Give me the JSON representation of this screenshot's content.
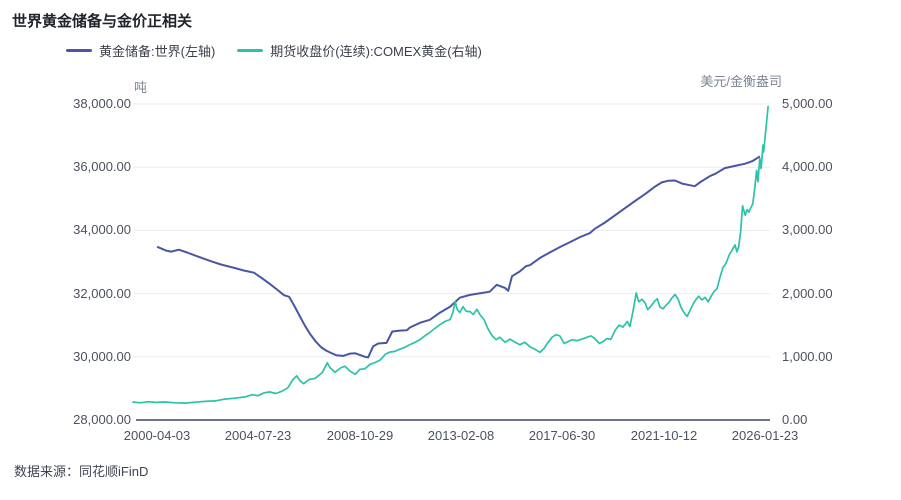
{
  "title": "世界黄金储备与金价正相关",
  "legend": {
    "items": [
      {
        "label": "黄金储备:世界(左轴)",
        "color": "#4956a3"
      },
      {
        "label": "期货收盘价(连续):COMEX黄金(右轴)",
        "color": "#2cc2a9"
      }
    ]
  },
  "left_axis": {
    "unit": "吨",
    "ticks": [
      "38,000.00",
      "36,000.00",
      "34,000.00",
      "32,000.00",
      "30,000.00",
      "28,000.00"
    ]
  },
  "right_axis": {
    "unit": "美元/金衡盎司",
    "ticks": [
      "5,000.00",
      "4,000.00",
      "3,000.00",
      "2,000.00",
      "1,000.00",
      "0.00"
    ]
  },
  "x_axis": {
    "ticks": [
      "2000-04-03",
      "2004-07-23",
      "2008-10-29",
      "2013-02-08",
      "2017-06-30",
      "2021-10-12",
      "2026-01-23"
    ]
  },
  "source": "数据来源：同花顺iFinD",
  "colors": {
    "reserves_line": "#4956a3",
    "gold_price_line": "#2cc2a9",
    "gridline": "#e9ebf5",
    "axis_line": "#3b4263"
  },
  "chart_data": {
    "type": "line",
    "title": "世界黄金储备与金价正相关",
    "x_tick_labels": [
      "2000-04-03",
      "2004-07-23",
      "2008-10-29",
      "2013-02-08",
      "2017-06-30",
      "2021-10-12",
      "2026-01-23"
    ],
    "x_note": "points use t = fraction of x-axis width (0 = left edge ~1999, 1 = right edge 2026-01-23)",
    "left_range": [
      28000,
      38000
    ],
    "right_range": [
      0,
      5000
    ],
    "grid": true,
    "legend_position": "top",
    "series": [
      {
        "name": "黄金储备:世界(左轴)",
        "axis": "left",
        "unit": "吨",
        "color": "#4956a3",
        "points": [
          [
            0.039,
            33470
          ],
          [
            0.052,
            33360
          ],
          [
            0.06,
            33330
          ],
          [
            0.072,
            33390
          ],
          [
            0.085,
            33300
          ],
          [
            0.102,
            33170
          ],
          [
            0.12,
            33040
          ],
          [
            0.138,
            32920
          ],
          [
            0.156,
            32830
          ],
          [
            0.174,
            32730
          ],
          [
            0.19,
            32660
          ],
          [
            0.203,
            32480
          ],
          [
            0.215,
            32300
          ],
          [
            0.226,
            32130
          ],
          [
            0.237,
            31950
          ],
          [
            0.245,
            31900
          ],
          [
            0.253,
            31620
          ],
          [
            0.262,
            31280
          ],
          [
            0.27,
            30980
          ],
          [
            0.278,
            30720
          ],
          [
            0.287,
            30480
          ],
          [
            0.295,
            30310
          ],
          [
            0.303,
            30200
          ],
          [
            0.311,
            30120
          ],
          [
            0.319,
            30050
          ],
          [
            0.33,
            30030
          ],
          [
            0.341,
            30100
          ],
          [
            0.349,
            30110
          ],
          [
            0.356,
            30060
          ],
          [
            0.364,
            30000
          ],
          [
            0.369,
            29980
          ],
          [
            0.377,
            30330
          ],
          [
            0.385,
            30420
          ],
          [
            0.398,
            30440
          ],
          [
            0.407,
            30800
          ],
          [
            0.419,
            30830
          ],
          [
            0.43,
            30840
          ],
          [
            0.435,
            30930
          ],
          [
            0.451,
            31080
          ],
          [
            0.466,
            31170
          ],
          [
            0.482,
            31400
          ],
          [
            0.498,
            31590
          ],
          [
            0.513,
            31870
          ],
          [
            0.529,
            31960
          ],
          [
            0.545,
            32010
          ],
          [
            0.56,
            32060
          ],
          [
            0.571,
            32280
          ],
          [
            0.584,
            32180
          ],
          [
            0.589,
            32090
          ],
          [
            0.595,
            32550
          ],
          [
            0.607,
            32700
          ],
          [
            0.617,
            32870
          ],
          [
            0.623,
            32900
          ],
          [
            0.639,
            33130
          ],
          [
            0.655,
            33310
          ],
          [
            0.67,
            33470
          ],
          [
            0.686,
            33630
          ],
          [
            0.702,
            33790
          ],
          [
            0.717,
            33910
          ],
          [
            0.725,
            34050
          ],
          [
            0.741,
            34250
          ],
          [
            0.757,
            34480
          ],
          [
            0.772,
            34700
          ],
          [
            0.788,
            34930
          ],
          [
            0.804,
            35150
          ],
          [
            0.819,
            35380
          ],
          [
            0.83,
            35520
          ],
          [
            0.84,
            35570
          ],
          [
            0.851,
            35580
          ],
          [
            0.862,
            35480
          ],
          [
            0.874,
            35430
          ],
          [
            0.882,
            35400
          ],
          [
            0.89,
            35520
          ],
          [
            0.898,
            35620
          ],
          [
            0.906,
            35720
          ],
          [
            0.914,
            35790
          ],
          [
            0.929,
            35970
          ],
          [
            0.945,
            36040
          ],
          [
            0.961,
            36110
          ],
          [
            0.973,
            36200
          ],
          [
            0.983,
            36330
          ]
        ]
      },
      {
        "name": "期货收盘价(连续):COMEX黄金(右轴)",
        "axis": "right",
        "unit": "美元/金衡盎司",
        "color": "#2cc2a9",
        "points": [
          [
            0.0,
            285
          ],
          [
            0.011,
            272
          ],
          [
            0.024,
            290
          ],
          [
            0.036,
            278
          ],
          [
            0.05,
            285
          ],
          [
            0.066,
            272
          ],
          [
            0.082,
            268
          ],
          [
            0.097,
            282
          ],
          [
            0.113,
            295
          ],
          [
            0.129,
            303
          ],
          [
            0.144,
            330
          ],
          [
            0.16,
            345
          ],
          [
            0.176,
            365
          ],
          [
            0.187,
            400
          ],
          [
            0.196,
            385
          ],
          [
            0.206,
            430
          ],
          [
            0.215,
            445
          ],
          [
            0.224,
            420
          ],
          [
            0.234,
            455
          ],
          [
            0.243,
            510
          ],
          [
            0.251,
            640
          ],
          [
            0.257,
            700
          ],
          [
            0.262,
            620
          ],
          [
            0.268,
            575
          ],
          [
            0.276,
            640
          ],
          [
            0.286,
            660
          ],
          [
            0.297,
            750
          ],
          [
            0.305,
            905
          ],
          [
            0.309,
            833
          ],
          [
            0.317,
            754
          ],
          [
            0.327,
            830
          ],
          [
            0.333,
            850
          ],
          [
            0.341,
            770
          ],
          [
            0.349,
            723
          ],
          [
            0.356,
            800
          ],
          [
            0.364,
            810
          ],
          [
            0.372,
            880
          ],
          [
            0.38,
            910
          ],
          [
            0.388,
            950
          ],
          [
            0.396,
            1040
          ],
          [
            0.403,
            1075
          ],
          [
            0.411,
            1085
          ],
          [
            0.419,
            1120
          ],
          [
            0.427,
            1150
          ],
          [
            0.435,
            1195
          ],
          [
            0.443,
            1230
          ],
          [
            0.451,
            1275
          ],
          [
            0.458,
            1330
          ],
          [
            0.466,
            1385
          ],
          [
            0.474,
            1450
          ],
          [
            0.482,
            1510
          ],
          [
            0.49,
            1560
          ],
          [
            0.498,
            1590
          ],
          [
            0.502,
            1700
          ],
          [
            0.506,
            1870
          ],
          [
            0.509,
            1750
          ],
          [
            0.513,
            1700
          ],
          [
            0.518,
            1795
          ],
          [
            0.523,
            1720
          ],
          [
            0.529,
            1715
          ],
          [
            0.534,
            1670
          ],
          [
            0.54,
            1750
          ],
          [
            0.545,
            1660
          ],
          [
            0.551,
            1590
          ],
          [
            0.557,
            1450
          ],
          [
            0.564,
            1330
          ],
          [
            0.57,
            1270
          ],
          [
            0.576,
            1310
          ],
          [
            0.584,
            1230
          ],
          [
            0.592,
            1280
          ],
          [
            0.6,
            1230
          ],
          [
            0.607,
            1190
          ],
          [
            0.615,
            1230
          ],
          [
            0.623,
            1160
          ],
          [
            0.631,
            1120
          ],
          [
            0.639,
            1070
          ],
          [
            0.645,
            1130
          ],
          [
            0.651,
            1220
          ],
          [
            0.658,
            1310
          ],
          [
            0.664,
            1350
          ],
          [
            0.67,
            1330
          ],
          [
            0.677,
            1210
          ],
          [
            0.683,
            1240
          ],
          [
            0.689,
            1270
          ],
          [
            0.697,
            1255
          ],
          [
            0.705,
            1280
          ],
          [
            0.713,
            1310
          ],
          [
            0.719,
            1330
          ],
          [
            0.725,
            1290
          ],
          [
            0.732,
            1210
          ],
          [
            0.738,
            1240
          ],
          [
            0.744,
            1290
          ],
          [
            0.75,
            1275
          ],
          [
            0.757,
            1420
          ],
          [
            0.763,
            1500
          ],
          [
            0.769,
            1470
          ],
          [
            0.776,
            1560
          ],
          [
            0.78,
            1480
          ],
          [
            0.785,
            1720
          ],
          [
            0.79,
            2010
          ],
          [
            0.794,
            1870
          ],
          [
            0.799,
            1910
          ],
          [
            0.804,
            1855
          ],
          [
            0.808,
            1745
          ],
          [
            0.813,
            1800
          ],
          [
            0.818,
            1870
          ],
          [
            0.823,
            1920
          ],
          [
            0.827,
            1790
          ],
          [
            0.832,
            1760
          ],
          [
            0.837,
            1820
          ],
          [
            0.841,
            1855
          ],
          [
            0.846,
            1930
          ],
          [
            0.851,
            1985
          ],
          [
            0.856,
            1905
          ],
          [
            0.86,
            1790
          ],
          [
            0.865,
            1700
          ],
          [
            0.87,
            1640
          ],
          [
            0.874,
            1720
          ],
          [
            0.879,
            1830
          ],
          [
            0.884,
            1910
          ],
          [
            0.888,
            1960
          ],
          [
            0.893,
            1900
          ],
          [
            0.898,
            1940
          ],
          [
            0.903,
            1870
          ],
          [
            0.907,
            1950
          ],
          [
            0.912,
            2030
          ],
          [
            0.917,
            2080
          ],
          [
            0.921,
            2240
          ],
          [
            0.926,
            2410
          ],
          [
            0.931,
            2480
          ],
          [
            0.936,
            2610
          ],
          [
            0.94,
            2680
          ],
          [
            0.945,
            2770
          ],
          [
            0.948,
            2660
          ],
          [
            0.951,
            2750
          ],
          [
            0.954,
            2990
          ],
          [
            0.957,
            3390
          ],
          [
            0.961,
            3240
          ],
          [
            0.964,
            3330
          ],
          [
            0.967,
            3290
          ],
          [
            0.97,
            3360
          ],
          [
            0.973,
            3420
          ],
          [
            0.976,
            3660
          ],
          [
            0.979,
            3950
          ],
          [
            0.981,
            3770
          ],
          [
            0.984,
            4140
          ],
          [
            0.986,
            3980
          ],
          [
            0.989,
            4350
          ],
          [
            0.99,
            4240
          ],
          [
            0.994,
            4650
          ],
          [
            0.997,
            4960
          ]
        ]
      }
    ]
  }
}
